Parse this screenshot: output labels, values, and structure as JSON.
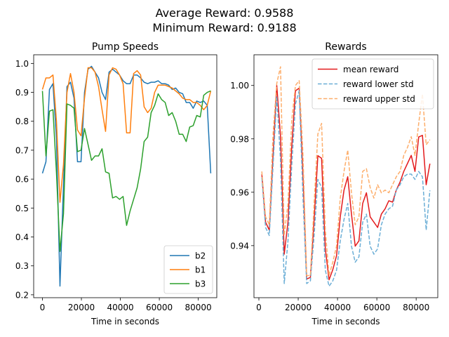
{
  "suptitle": [
    "Average Reward: 0.9588",
    "Minimum Reward: 0.9188"
  ],
  "chart_data": [
    {
      "type": "line",
      "title": "Pump Speeds",
      "xlabel": "Time in seconds",
      "ylabel": "",
      "xlim": [
        -4500,
        89500
      ],
      "ylim": [
        0.19,
        1.03
      ],
      "xticks": [
        0,
        20000,
        40000,
        60000,
        80000
      ],
      "yticks": [
        0.2,
        0.3,
        0.4,
        0.5,
        0.6,
        0.7,
        0.8,
        0.9,
        1.0
      ],
      "ytick_labels": [
        "0.2",
        "0.3",
        "0.4",
        "0.5",
        "0.6",
        "0.7",
        "0.8",
        "0.9",
        "1.0"
      ],
      "legend_position": "lower-right",
      "series": [
        {
          "name": "b2",
          "color": "#1f77b4",
          "dash": false,
          "x": [
            0,
            1800,
            3600,
            5400,
            7200,
            9000,
            10800,
            12600,
            14400,
            16200,
            18000,
            19800,
            21600,
            23400,
            25200,
            27000,
            28800,
            30600,
            32400,
            34200,
            36000,
            37800,
            39600,
            41400,
            43200,
            45000,
            46800,
            48600,
            50400,
            52200,
            54000,
            55800,
            57600,
            59400,
            61200,
            63000,
            64800,
            66600,
            68400,
            70200,
            72000,
            73800,
            75600,
            77400,
            79200,
            81000,
            82800,
            84600,
            86400
          ],
          "y": [
            0.62,
            0.66,
            0.91,
            0.93,
            0.74,
            0.23,
            0.58,
            0.92,
            0.935,
            0.88,
            0.66,
            0.66,
            0.9,
            0.98,
            0.99,
            0.97,
            0.95,
            0.9,
            0.875,
            0.97,
            0.98,
            0.97,
            0.96,
            0.94,
            0.93,
            0.93,
            0.96,
            0.96,
            0.95,
            0.935,
            0.93,
            0.935,
            0.935,
            0.94,
            0.93,
            0.93,
            0.925,
            0.91,
            0.915,
            0.9,
            0.895,
            0.865,
            0.865,
            0.845,
            0.87,
            0.865,
            0.87,
            0.855,
            0.62
          ]
        },
        {
          "name": "b1",
          "color": "#ff7f0e",
          "dash": false,
          "x": [
            0,
            1800,
            3600,
            5400,
            7200,
            9000,
            10800,
            12600,
            14400,
            16200,
            18000,
            19800,
            21600,
            23400,
            25200,
            27000,
            28800,
            30600,
            32400,
            34200,
            36000,
            37800,
            39600,
            41400,
            43200,
            45000,
            46800,
            48600,
            50400,
            52200,
            54000,
            55800,
            57600,
            59400,
            61200,
            63000,
            64800,
            66600,
            68400,
            70200,
            72000,
            73800,
            75600,
            77400,
            79200,
            81000,
            82800,
            84600,
            86400
          ],
          "y": [
            0.91,
            0.95,
            0.95,
            0.96,
            0.8,
            0.52,
            0.65,
            0.9,
            0.965,
            0.9,
            0.77,
            0.75,
            0.88,
            0.985,
            0.985,
            0.97,
            0.92,
            0.84,
            0.765,
            0.96,
            0.985,
            0.98,
            0.96,
            0.93,
            0.76,
            0.76,
            0.965,
            0.975,
            0.96,
            0.85,
            0.83,
            0.845,
            0.9,
            0.925,
            0.925,
            0.925,
            0.92,
            0.915,
            0.905,
            0.895,
            0.88,
            0.875,
            0.875,
            0.865,
            0.865,
            0.855,
            0.84,
            0.855,
            0.905
          ]
        },
        {
          "name": "b3",
          "color": "#2ca02c",
          "dash": false,
          "x": [
            0,
            1800,
            3600,
            5400,
            7200,
            9000,
            10800,
            12600,
            14400,
            16200,
            18000,
            19800,
            21600,
            23400,
            25200,
            27000,
            28800,
            30600,
            32400,
            34200,
            36000,
            37800,
            39600,
            41400,
            43200,
            45000,
            46800,
            48600,
            50400,
            52200,
            54000,
            55800,
            57600,
            59400,
            61200,
            63000,
            64800,
            66600,
            68400,
            70200,
            72000,
            73800,
            75600,
            77400,
            79200,
            81000,
            82800,
            84600,
            86400
          ],
          "y": [
            0.905,
            0.68,
            0.835,
            0.84,
            0.62,
            0.35,
            0.48,
            0.86,
            0.855,
            0.845,
            0.695,
            0.7,
            0.775,
            0.72,
            0.665,
            0.68,
            0.68,
            0.705,
            0.625,
            0.62,
            0.535,
            0.54,
            0.53,
            0.54,
            0.44,
            0.49,
            0.53,
            0.57,
            0.635,
            0.73,
            0.745,
            0.83,
            0.855,
            0.895,
            0.875,
            0.865,
            0.82,
            0.83,
            0.8,
            0.755,
            0.755,
            0.73,
            0.78,
            0.785,
            0.82,
            0.815,
            0.89,
            0.9,
            0.905
          ]
        }
      ]
    },
    {
      "type": "line",
      "title": "Rewards",
      "xlabel": "Time in seconds",
      "ylabel": "",
      "xlim": [
        -2500,
        91000
      ],
      "ylim": [
        0.9205,
        1.0115
      ],
      "xticks": [
        0,
        20000,
        40000,
        60000,
        80000
      ],
      "yticks": [
        0.94,
        0.96,
        0.98,
        1.0
      ],
      "ytick_labels": [
        "0.94",
        "0.96",
        "0.98",
        "1.00"
      ],
      "legend_position": "top-right",
      "series": [
        {
          "name": "mean reward",
          "color": "#e31a1c",
          "dash": false,
          "x": [
            1500,
            3400,
            5300,
            7200,
            9100,
            11000,
            12900,
            14800,
            16700,
            18600,
            20500,
            22400,
            24300,
            26200,
            28100,
            30000,
            31900,
            33800,
            35700,
            37600,
            39500,
            41400,
            43300,
            45200,
            47100,
            49000,
            50900,
            52800,
            54700,
            56600,
            58500,
            60400,
            62300,
            64200,
            66100,
            68000,
            69900,
            71800,
            73700,
            75600,
            77500,
            79400,
            81300,
            83200,
            85100,
            87000
          ],
          "y": [
            0.9668,
            0.9488,
            0.9458,
            0.9738,
            1.0,
            0.981,
            0.9368,
            0.9488,
            0.9768,
            0.998,
            0.999,
            0.9668,
            0.9275,
            0.9281,
            0.9498,
            0.9737,
            0.9727,
            0.9388,
            0.9272,
            0.931,
            0.9362,
            0.9508,
            0.9608,
            0.9658,
            0.9518,
            0.9398,
            0.9418,
            0.9558,
            0.9598,
            0.9508,
            0.9488,
            0.9468,
            0.9518,
            0.9538,
            0.9568,
            0.9563,
            0.9608,
            0.9638,
            0.9678,
            0.9708,
            0.9738,
            0.9678,
            0.9807,
            0.9813,
            0.9628,
            0.9707
          ]
        },
        {
          "name": "reward lower std",
          "color": "#6baed6",
          "dash": true,
          "x": [
            1500,
            3400,
            5300,
            7200,
            9100,
            11000,
            12900,
            14800,
            16700,
            18600,
            20500,
            22400,
            24300,
            26200,
            28100,
            30000,
            31900,
            33800,
            35700,
            37600,
            39500,
            41400,
            43300,
            45200,
            47100,
            49000,
            50900,
            52800,
            54700,
            56600,
            58500,
            60400,
            62300,
            64200,
            66100,
            68000,
            69900,
            71800,
            73700,
            75600,
            77500,
            79400,
            81300,
            83200,
            85100,
            87000
          ],
          "y": [
            0.9655,
            0.9468,
            0.9438,
            0.9698,
            0.996,
            0.972,
            0.9258,
            0.9418,
            0.9698,
            0.993,
            0.998,
            0.9588,
            0.9258,
            0.9268,
            0.9438,
            0.9648,
            0.9618,
            0.9308,
            0.9248,
            0.9268,
            0.9308,
            0.9418,
            0.9498,
            0.9558,
            0.9398,
            0.9338,
            0.9358,
            0.9488,
            0.9518,
            0.9398,
            0.9368,
            0.9388,
            0.9478,
            0.9518,
            0.9538,
            0.9548,
            0.9608,
            0.9628,
            0.9658,
            0.9668,
            0.9668,
            0.9648,
            0.9678,
            0.9658,
            0.9458,
            0.9607
          ]
        },
        {
          "name": "reward upper std",
          "color": "#fdae6b",
          "dash": true,
          "x": [
            1500,
            3400,
            5300,
            7200,
            9100,
            11000,
            12900,
            14800,
            16700,
            18600,
            20500,
            22400,
            24300,
            26200,
            28100,
            30000,
            31900,
            33800,
            35700,
            37600,
            39500,
            41400,
            43300,
            45200,
            47100,
            49000,
            50900,
            52800,
            54700,
            56600,
            58500,
            60400,
            62300,
            64200,
            66100,
            68000,
            69900,
            71800,
            73700,
            75600,
            77500,
            79400,
            81300,
            83200,
            85100,
            87000
          ],
          "y": [
            0.9678,
            0.9508,
            0.9478,
            0.9818,
            1.0008,
            1.007,
            0.9438,
            0.9558,
            0.9868,
            1.0,
            1.0018,
            0.9748,
            0.9288,
            0.9288,
            0.9558,
            0.9818,
            0.9858,
            0.9458,
            0.9288,
            0.9338,
            0.9398,
            0.9578,
            0.9678,
            0.9758,
            0.9598,
            0.9478,
            0.9508,
            0.9678,
            0.9688,
            0.9618,
            0.9578,
            0.9628,
            0.9598,
            0.9608,
            0.9598,
            0.9628,
            0.9658,
            0.9678,
            0.9738,
            0.9768,
            0.9808,
            0.9738,
            0.9858,
            0.9968,
            0.9778,
            0.9797
          ]
        }
      ]
    }
  ]
}
